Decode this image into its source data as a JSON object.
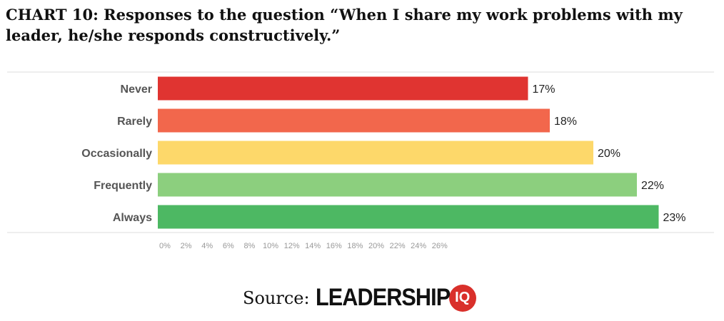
{
  "chart_data": {
    "type": "bar",
    "orientation": "horizontal",
    "title": "CHART 10: Responses to the question “When I share my work problems with my leader, he/she responds constructively.”",
    "categories": [
      "Never",
      "Rarely",
      "Occasionally",
      "Frequently",
      "Always"
    ],
    "values": [
      17,
      18,
      20,
      22,
      23
    ],
    "value_labels": [
      "17%",
      "18%",
      "20%",
      "22%",
      "23%"
    ],
    "colors": [
      "#e03431",
      "#f2674c",
      "#fdd86a",
      "#8ccf7e",
      "#4db863"
    ],
    "xlim": [
      0,
      26
    ],
    "xticks": [
      "0%",
      "2%",
      "4%",
      "6%",
      "8%",
      "10%",
      "12%",
      "14%",
      "16%",
      "18%",
      "20%",
      "22%",
      "24%",
      "26%"
    ],
    "grid": false,
    "xlabel": "",
    "ylabel": ""
  },
  "source": {
    "label": "Source:",
    "logo_text": "LEADERSHIP",
    "logo_badge": "IQ"
  }
}
